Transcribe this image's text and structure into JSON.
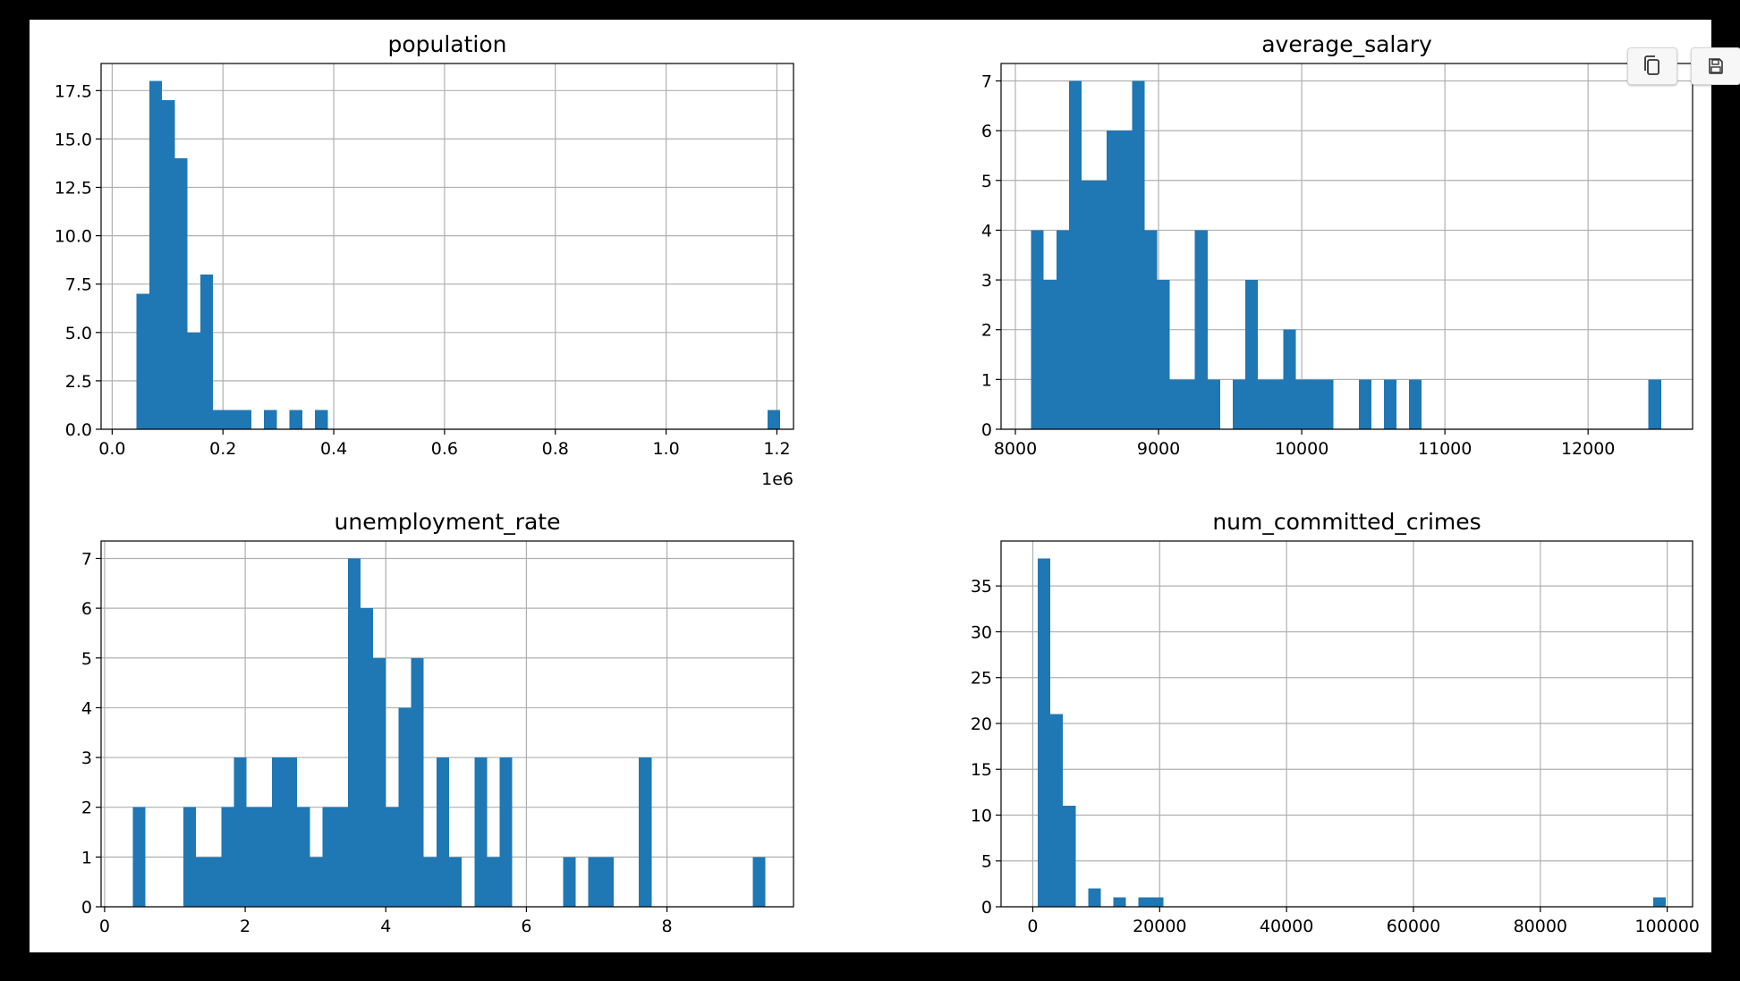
{
  "toolbar": {
    "copy_icon": "copy-icon",
    "save_icon": "save-icon"
  },
  "colors": {
    "bar": "#1f77b4",
    "grid": "#b0b0b0",
    "axis": "#000000",
    "background": "#000000",
    "figure": "#ffffff"
  },
  "chart_data": [
    {
      "type": "bar",
      "title": "population",
      "xlim": [
        -0.02,
        1.23
      ],
      "ylim": [
        0,
        18.9
      ],
      "xticks": [
        0.0,
        0.2,
        0.4,
        0.6,
        0.8,
        1.0,
        1.2
      ],
      "xtick_labels": [
        "0.0",
        "0.2",
        "0.4",
        "0.6",
        "0.8",
        "1.0",
        "1.2"
      ],
      "yticks": [
        0,
        2.5,
        5,
        7.5,
        10,
        12.5,
        15,
        17.5
      ],
      "ytick_labels": [
        "0.0",
        "2.5",
        "5.0",
        "7.5",
        "10.0",
        "12.5",
        "15.0",
        "17.5"
      ],
      "offset_label": "1e6",
      "bins": [
        {
          "x0": 0.044,
          "x1": 0.067,
          "count": 7
        },
        {
          "x0": 0.067,
          "x1": 0.09,
          "count": 18
        },
        {
          "x0": 0.09,
          "x1": 0.113,
          "count": 17
        },
        {
          "x0": 0.113,
          "x1": 0.136,
          "count": 14
        },
        {
          "x0": 0.136,
          "x1": 0.159,
          "count": 5
        },
        {
          "x0": 0.159,
          "x1": 0.182,
          "count": 8
        },
        {
          "x0": 0.182,
          "x1": 0.205,
          "count": 1
        },
        {
          "x0": 0.205,
          "x1": 0.228,
          "count": 1
        },
        {
          "x0": 0.228,
          "x1": 0.251,
          "count": 1
        },
        {
          "x0": 0.274,
          "x1": 0.297,
          "count": 1
        },
        {
          "x0": 0.32,
          "x1": 0.343,
          "count": 1
        },
        {
          "x0": 0.366,
          "x1": 0.389,
          "count": 1
        },
        {
          "x0": 1.183,
          "x1": 1.206,
          "count": 1
        }
      ]
    },
    {
      "type": "bar",
      "title": "average_salary",
      "xlim": [
        7900,
        12730
      ],
      "ylim": [
        0,
        7.35
      ],
      "xticks": [
        8000,
        9000,
        10000,
        11000,
        12000
      ],
      "xtick_labels": [
        "8000",
        "9000",
        "10000",
        "11000",
        "12000"
      ],
      "yticks": [
        0,
        1,
        2,
        3,
        4,
        5,
        6,
        7
      ],
      "ytick_labels": [
        "0",
        "1",
        "2",
        "3",
        "4",
        "5",
        "6",
        "7"
      ],
      "offset_label": "",
      "bins": [
        {
          "x0": 8110,
          "x1": 8198,
          "count": 4
        },
        {
          "x0": 8198,
          "x1": 8286,
          "count": 3
        },
        {
          "x0": 8286,
          "x1": 8374,
          "count": 4
        },
        {
          "x0": 8374,
          "x1": 8462,
          "count": 7
        },
        {
          "x0": 8462,
          "x1": 8550,
          "count": 5
        },
        {
          "x0": 8550,
          "x1": 8638,
          "count": 5
        },
        {
          "x0": 8638,
          "x1": 8726,
          "count": 6
        },
        {
          "x0": 8726,
          "x1": 8814,
          "count": 6
        },
        {
          "x0": 8814,
          "x1": 8902,
          "count": 7
        },
        {
          "x0": 8902,
          "x1": 8990,
          "count": 4
        },
        {
          "x0": 8990,
          "x1": 9078,
          "count": 3
        },
        {
          "x0": 9078,
          "x1": 9166,
          "count": 1
        },
        {
          "x0": 9166,
          "x1": 9254,
          "count": 1
        },
        {
          "x0": 9254,
          "x1": 9342,
          "count": 4
        },
        {
          "x0": 9342,
          "x1": 9430,
          "count": 1
        },
        {
          "x0": 9518,
          "x1": 9606,
          "count": 1
        },
        {
          "x0": 9606,
          "x1": 9694,
          "count": 3
        },
        {
          "x0": 9694,
          "x1": 9782,
          "count": 1
        },
        {
          "x0": 9782,
          "x1": 9870,
          "count": 1
        },
        {
          "x0": 9870,
          "x1": 9958,
          "count": 2
        },
        {
          "x0": 9958,
          "x1": 10046,
          "count": 1
        },
        {
          "x0": 10046,
          "x1": 10134,
          "count": 1
        },
        {
          "x0": 10134,
          "x1": 10222,
          "count": 1
        },
        {
          "x0": 10398,
          "x1": 10486,
          "count": 1
        },
        {
          "x0": 10574,
          "x1": 10662,
          "count": 1
        },
        {
          "x0": 10750,
          "x1": 10838,
          "count": 1
        },
        {
          "x0": 12422,
          "x1": 12510,
          "count": 1
        }
      ]
    },
    {
      "type": "bar",
      "title": "unemployment_rate",
      "xlim": [
        -0.05,
        9.8
      ],
      "ylim": [
        0,
        7.35
      ],
      "xticks": [
        0,
        2,
        4,
        6,
        8
      ],
      "xtick_labels": [
        "0",
        "2",
        "4",
        "6",
        "8"
      ],
      "yticks": [
        0,
        1,
        2,
        3,
        4,
        5,
        6,
        7
      ],
      "ytick_labels": [
        "0",
        "1",
        "2",
        "3",
        "4",
        "5",
        "6",
        "7"
      ],
      "offset_label": "",
      "bins": [
        {
          "x0": 0.4,
          "x1": 0.58,
          "count": 2
        },
        {
          "x0": 1.12,
          "x1": 1.3,
          "count": 2
        },
        {
          "x0": 1.3,
          "x1": 1.66,
          "count": 1
        },
        {
          "x0": 1.66,
          "x1": 1.84,
          "count": 2
        },
        {
          "x0": 1.84,
          "x1": 2.02,
          "count": 3
        },
        {
          "x0": 2.02,
          "x1": 2.38,
          "count": 2
        },
        {
          "x0": 2.38,
          "x1": 2.74,
          "count": 3
        },
        {
          "x0": 2.74,
          "x1": 2.92,
          "count": 2
        },
        {
          "x0": 2.92,
          "x1": 3.1,
          "count": 1
        },
        {
          "x0": 3.1,
          "x1": 3.46,
          "count": 2
        },
        {
          "x0": 3.46,
          "x1": 3.64,
          "count": 7
        },
        {
          "x0": 3.64,
          "x1": 3.82,
          "count": 6
        },
        {
          "x0": 3.82,
          "x1": 4.0,
          "count": 5
        },
        {
          "x0": 4.0,
          "x1": 4.18,
          "count": 2
        },
        {
          "x0": 4.18,
          "x1": 4.36,
          "count": 4
        },
        {
          "x0": 4.36,
          "x1": 4.54,
          "count": 5
        },
        {
          "x0": 4.54,
          "x1": 4.72,
          "count": 1
        },
        {
          "x0": 4.72,
          "x1": 4.9,
          "count": 3
        },
        {
          "x0": 4.9,
          "x1": 5.08,
          "count": 1
        },
        {
          "x0": 5.26,
          "x1": 5.44,
          "count": 3
        },
        {
          "x0": 5.44,
          "x1": 5.62,
          "count": 1
        },
        {
          "x0": 5.62,
          "x1": 5.8,
          "count": 3
        },
        {
          "x0": 6.52,
          "x1": 6.7,
          "count": 1
        },
        {
          "x0": 6.88,
          "x1": 7.24,
          "count": 1
        },
        {
          "x0": 7.6,
          "x1": 7.78,
          "count": 3
        },
        {
          "x0": 9.22,
          "x1": 9.4,
          "count": 1
        }
      ]
    },
    {
      "type": "bar",
      "title": "num_committed_crimes",
      "xlim": [
        -5000,
        104000
      ],
      "ylim": [
        0,
        39.9
      ],
      "xticks": [
        0,
        20000,
        40000,
        60000,
        80000,
        100000
      ],
      "xtick_labels": [
        "0",
        "20000",
        "40000",
        "60000",
        "80000",
        "100000"
      ],
      "yticks": [
        0,
        5,
        10,
        15,
        20,
        25,
        30,
        35
      ],
      "ytick_labels": [
        "0",
        "5",
        "10",
        "15",
        "20",
        "25",
        "30",
        "35"
      ],
      "offset_label": "",
      "bins": [
        {
          "x0": 800,
          "x1": 2780,
          "count": 38
        },
        {
          "x0": 2780,
          "x1": 4760,
          "count": 21
        },
        {
          "x0": 4760,
          "x1": 6740,
          "count": 11
        },
        {
          "x0": 8720,
          "x1": 10700,
          "count": 2
        },
        {
          "x0": 12680,
          "x1": 14660,
          "count": 1
        },
        {
          "x0": 16640,
          "x1": 18620,
          "count": 1
        },
        {
          "x0": 18620,
          "x1": 20600,
          "count": 1
        },
        {
          "x0": 97820,
          "x1": 99800,
          "count": 1
        }
      ]
    }
  ]
}
